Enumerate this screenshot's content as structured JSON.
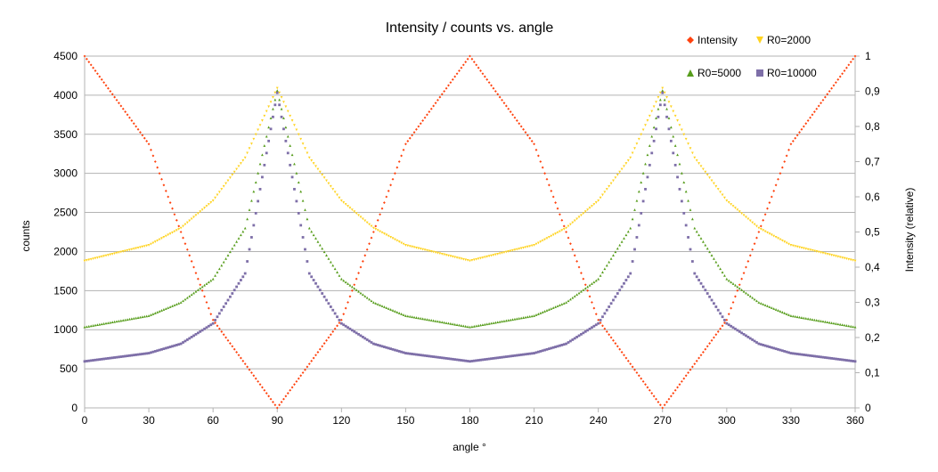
{
  "chart_data": {
    "type": "scatter",
    "title": "Intensity / counts vs. angle",
    "xlabel": "angle °",
    "ylabel_left": "counts",
    "ylabel_right": "Intensity (relative)",
    "xlim": [
      0,
      360
    ],
    "xticks": [
      0,
      30,
      60,
      90,
      120,
      150,
      180,
      210,
      240,
      270,
      300,
      330,
      360
    ],
    "ylim_left": [
      0,
      4500
    ],
    "yticks_left": [
      0,
      500,
      1000,
      1500,
      2000,
      2500,
      3000,
      3500,
      4000,
      4500
    ],
    "ylim_right": [
      0,
      1
    ],
    "yticks_right": [
      "0",
      "0,1",
      "0,2",
      "0,3",
      "0,4",
      "0,5",
      "0,6",
      "0,7",
      "0,8",
      "0,9",
      "1"
    ],
    "grid": "horizontal",
    "legend_position": "top-right",
    "x_step": 1,
    "series": [
      {
        "name": "Intensity",
        "axis": "right",
        "marker": "diamond",
        "color": "#ff420e",
        "sampled": [
          {
            "x": 0,
            "y": 1
          },
          {
            "x": 30,
            "y": 0.75
          },
          {
            "x": 45,
            "y": 0.5
          },
          {
            "x": 60,
            "y": 0.25
          },
          {
            "x": 90,
            "y": 0
          },
          {
            "x": 120,
            "y": 0.25
          },
          {
            "x": 135,
            "y": 0.5
          },
          {
            "x": 150,
            "y": 0.75
          },
          {
            "x": 180,
            "y": 1
          },
          {
            "x": 210,
            "y": 0.75
          },
          {
            "x": 225,
            "y": 0.5
          },
          {
            "x": 240,
            "y": 0.25
          },
          {
            "x": 270,
            "y": 0
          },
          {
            "x": 300,
            "y": 0.25
          },
          {
            "x": 315,
            "y": 0.5
          },
          {
            "x": 330,
            "y": 0.75
          },
          {
            "x": 360,
            "y": 1
          }
        ]
      },
      {
        "name": "R0=2000",
        "axis": "left",
        "marker": "triangle-down",
        "color": "#ffd320",
        "sampled": [
          {
            "x": 0,
            "y": 1880
          },
          {
            "x": 30,
            "y": 2080
          },
          {
            "x": 45,
            "y": 2300
          },
          {
            "x": 60,
            "y": 2650
          },
          {
            "x": 75,
            "y": 3200
          },
          {
            "x": 90,
            "y": 4090
          },
          {
            "x": 105,
            "y": 3200
          },
          {
            "x": 120,
            "y": 2650
          },
          {
            "x": 135,
            "y": 2300
          },
          {
            "x": 150,
            "y": 2080
          },
          {
            "x": 180,
            "y": 1880
          },
          {
            "x": 210,
            "y": 2080
          },
          {
            "x": 225,
            "y": 2300
          },
          {
            "x": 240,
            "y": 2650
          },
          {
            "x": 255,
            "y": 3200
          },
          {
            "x": 270,
            "y": 4090
          },
          {
            "x": 285,
            "y": 3200
          },
          {
            "x": 300,
            "y": 2650
          },
          {
            "x": 315,
            "y": 2300
          },
          {
            "x": 330,
            "y": 2080
          },
          {
            "x": 360,
            "y": 1880
          }
        ]
      },
      {
        "name": "R0=5000",
        "axis": "left",
        "marker": "triangle-up",
        "color": "#579d1c",
        "sampled": [
          {
            "x": 0,
            "y": 1035
          },
          {
            "x": 30,
            "y": 1180
          },
          {
            "x": 45,
            "y": 1350
          },
          {
            "x": 60,
            "y": 1650
          },
          {
            "x": 75,
            "y": 2300
          },
          {
            "x": 90,
            "y": 4060
          },
          {
            "x": 105,
            "y": 2300
          },
          {
            "x": 120,
            "y": 1650
          },
          {
            "x": 135,
            "y": 1350
          },
          {
            "x": 150,
            "y": 1180
          },
          {
            "x": 180,
            "y": 1035
          },
          {
            "x": 210,
            "y": 1180
          },
          {
            "x": 225,
            "y": 1350
          },
          {
            "x": 240,
            "y": 1650
          },
          {
            "x": 255,
            "y": 2300
          },
          {
            "x": 270,
            "y": 4060
          },
          {
            "x": 285,
            "y": 2300
          },
          {
            "x": 300,
            "y": 1650
          },
          {
            "x": 315,
            "y": 1350
          },
          {
            "x": 330,
            "y": 1180
          },
          {
            "x": 360,
            "y": 1035
          }
        ]
      },
      {
        "name": "R0=10000",
        "axis": "left",
        "marker": "square",
        "color": "#7e6fa8",
        "sampled": [
          {
            "x": 0,
            "y": 595
          },
          {
            "x": 30,
            "y": 700
          },
          {
            "x": 45,
            "y": 820
          },
          {
            "x": 60,
            "y": 1080
          },
          {
            "x": 75,
            "y": 1720
          },
          {
            "x": 90,
            "y": 4030
          },
          {
            "x": 105,
            "y": 1720
          },
          {
            "x": 120,
            "y": 1080
          },
          {
            "x": 135,
            "y": 820
          },
          {
            "x": 150,
            "y": 700
          },
          {
            "x": 180,
            "y": 595
          },
          {
            "x": 210,
            "y": 700
          },
          {
            "x": 225,
            "y": 820
          },
          {
            "x": 240,
            "y": 1080
          },
          {
            "x": 255,
            "y": 1720
          },
          {
            "x": 270,
            "y": 4030
          },
          {
            "x": 285,
            "y": 1720
          },
          {
            "x": 300,
            "y": 1080
          },
          {
            "x": 315,
            "y": 820
          },
          {
            "x": 330,
            "y": 700
          },
          {
            "x": 360,
            "y": 595
          }
        ]
      }
    ]
  }
}
